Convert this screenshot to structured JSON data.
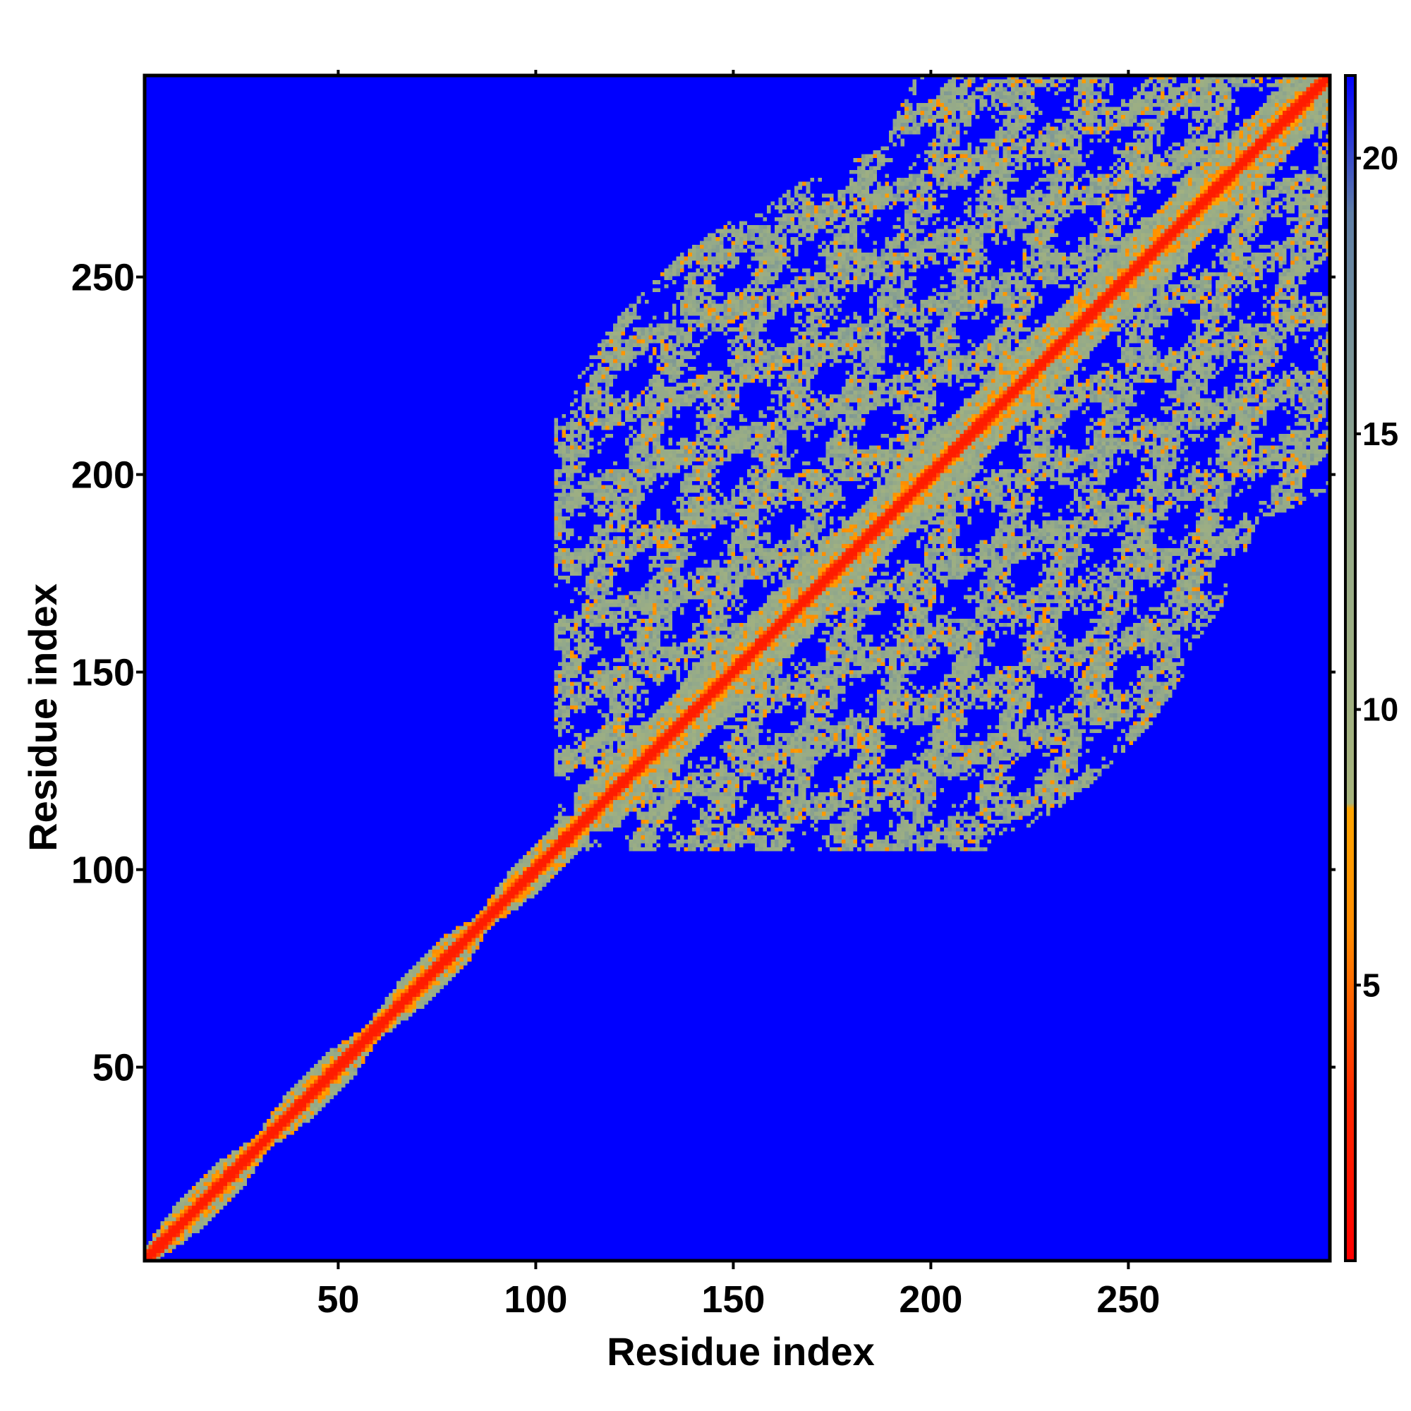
{
  "chart_data": {
    "type": "heatmap",
    "title": "",
    "xlabel": "Residue index",
    "ylabel": "Residue index",
    "xlim": [
      1,
      301
    ],
    "ylim": [
      1,
      301
    ],
    "x_ticks": [
      50,
      100,
      150,
      200,
      250
    ],
    "y_ticks": [
      50,
      100,
      150,
      200,
      250
    ],
    "x_tick_labels": [
      "50",
      "100",
      "150",
      "200",
      "250"
    ],
    "y_tick_labels": [
      "50",
      "100",
      "150",
      "200",
      "250"
    ],
    "colorbar": {
      "range": [
        0,
        21.5
      ],
      "ticks": [
        5,
        10,
        15,
        20
      ],
      "tick_labels": [
        "5",
        "10",
        "15",
        "20"
      ],
      "colors": [
        {
          "value": 0,
          "color": "#ff0000"
        },
        {
          "value": 3,
          "color": "#ff2a00"
        },
        {
          "value": 6,
          "color": "#ff8c00"
        },
        {
          "value": 8.2,
          "color": "#ffa500"
        },
        {
          "value": 8.3,
          "color": "#a7b47c"
        },
        {
          "value": 14,
          "color": "#93a98a"
        },
        {
          "value": 19,
          "color": "#5f7ea6"
        },
        {
          "value": 21.5,
          "color": "#0000ff"
        }
      ]
    },
    "background_value": 21.5,
    "diagonal_value": 2,
    "structure": {
      "residues": 301,
      "compact_domain_start": 110,
      "pattern": "distance map: red diagonal, near-diagonal band, periodic off-diagonal ring clusters between residues 110 and 301"
    }
  }
}
